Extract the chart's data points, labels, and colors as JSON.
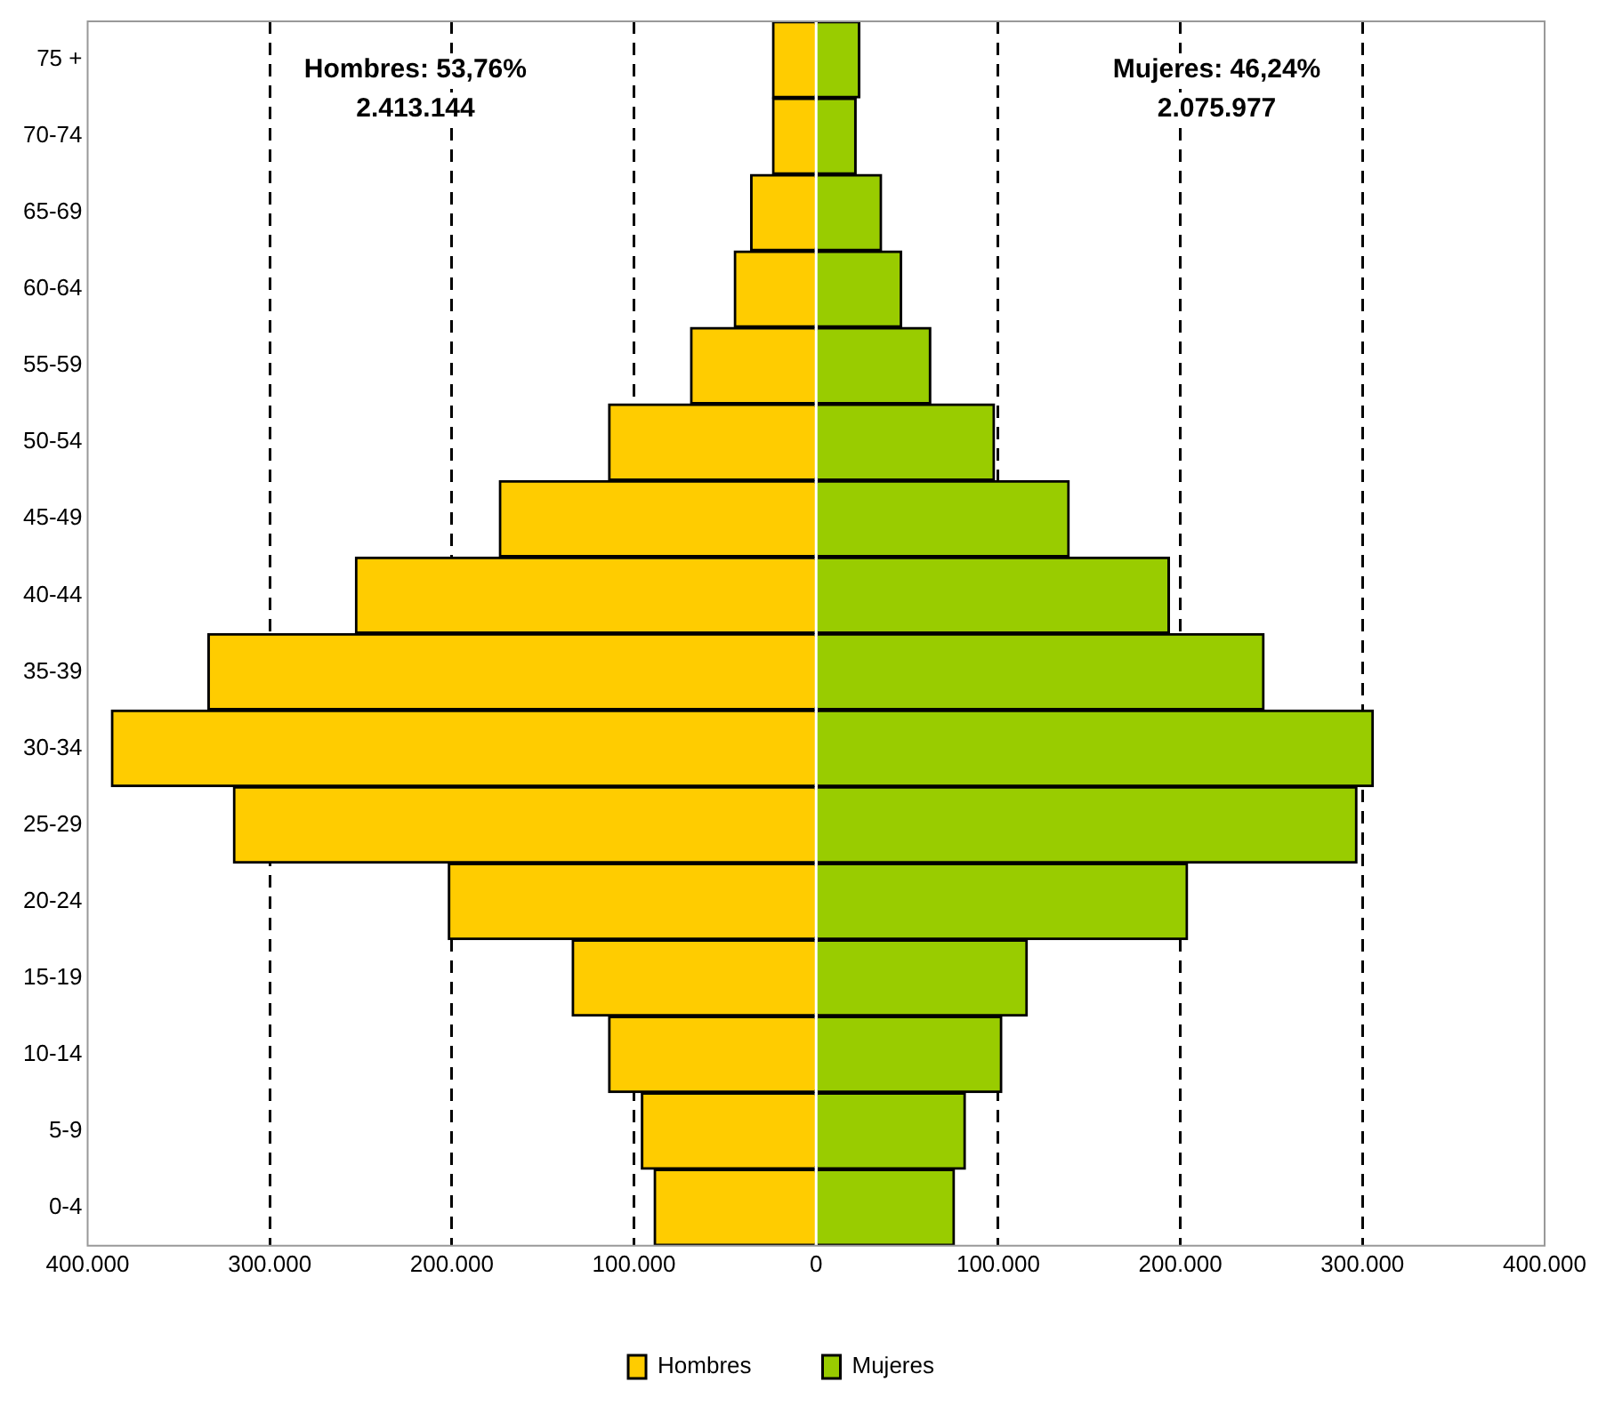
{
  "chart_data": {
    "type": "bar",
    "orientation": "horizontal",
    "stacked": true,
    "categories": [
      "75 +",
      "70-74",
      "65-69",
      "60-64",
      "55-59",
      "50-54",
      "45-49",
      "40-44",
      "35-39",
      "30-34",
      "25-29",
      "20-24",
      "15-19",
      "10-14",
      "5-9",
      "0-4"
    ],
    "series": [
      {
        "name": "Hombres",
        "color": "#ffcc00",
        "values": [
          -24000,
          -24000,
          -36000,
          -45000,
          -69000,
          -114000,
          -174000,
          -253000,
          -334000,
          -387000,
          -320000,
          -202000,
          -134000,
          -114000,
          -96000,
          -89000
        ]
      },
      {
        "name": "Mujeres",
        "color": "#99cc00",
        "values": [
          24000,
          22000,
          36000,
          47000,
          63000,
          98000,
          139000,
          194000,
          246000,
          306000,
          297000,
          204000,
          116000,
          102000,
          82000,
          76000
        ]
      }
    ],
    "xlim": [
      -400000,
      400000
    ],
    "xticks": [
      {
        "value": -400000,
        "label": "400.000"
      },
      {
        "value": -300000,
        "label": "300.000"
      },
      {
        "value": -200000,
        "label": "200.000"
      },
      {
        "value": -100000,
        "label": "100.000"
      },
      0,
      {
        "value": 100000,
        "label": "100.000"
      },
      {
        "value": 200000,
        "label": "200.000"
      },
      {
        "value": 300000,
        "label": "300.000"
      },
      {
        "value": 400000,
        "label": "400.000"
      }
    ],
    "grid": "x",
    "line_style": "dashed",
    "legend": "bottom",
    "annotations": [
      "Hombres: 53,76%",
      "2.413.144",
      "Mujeres: 46,24%",
      "2.075.977"
    ]
  }
}
